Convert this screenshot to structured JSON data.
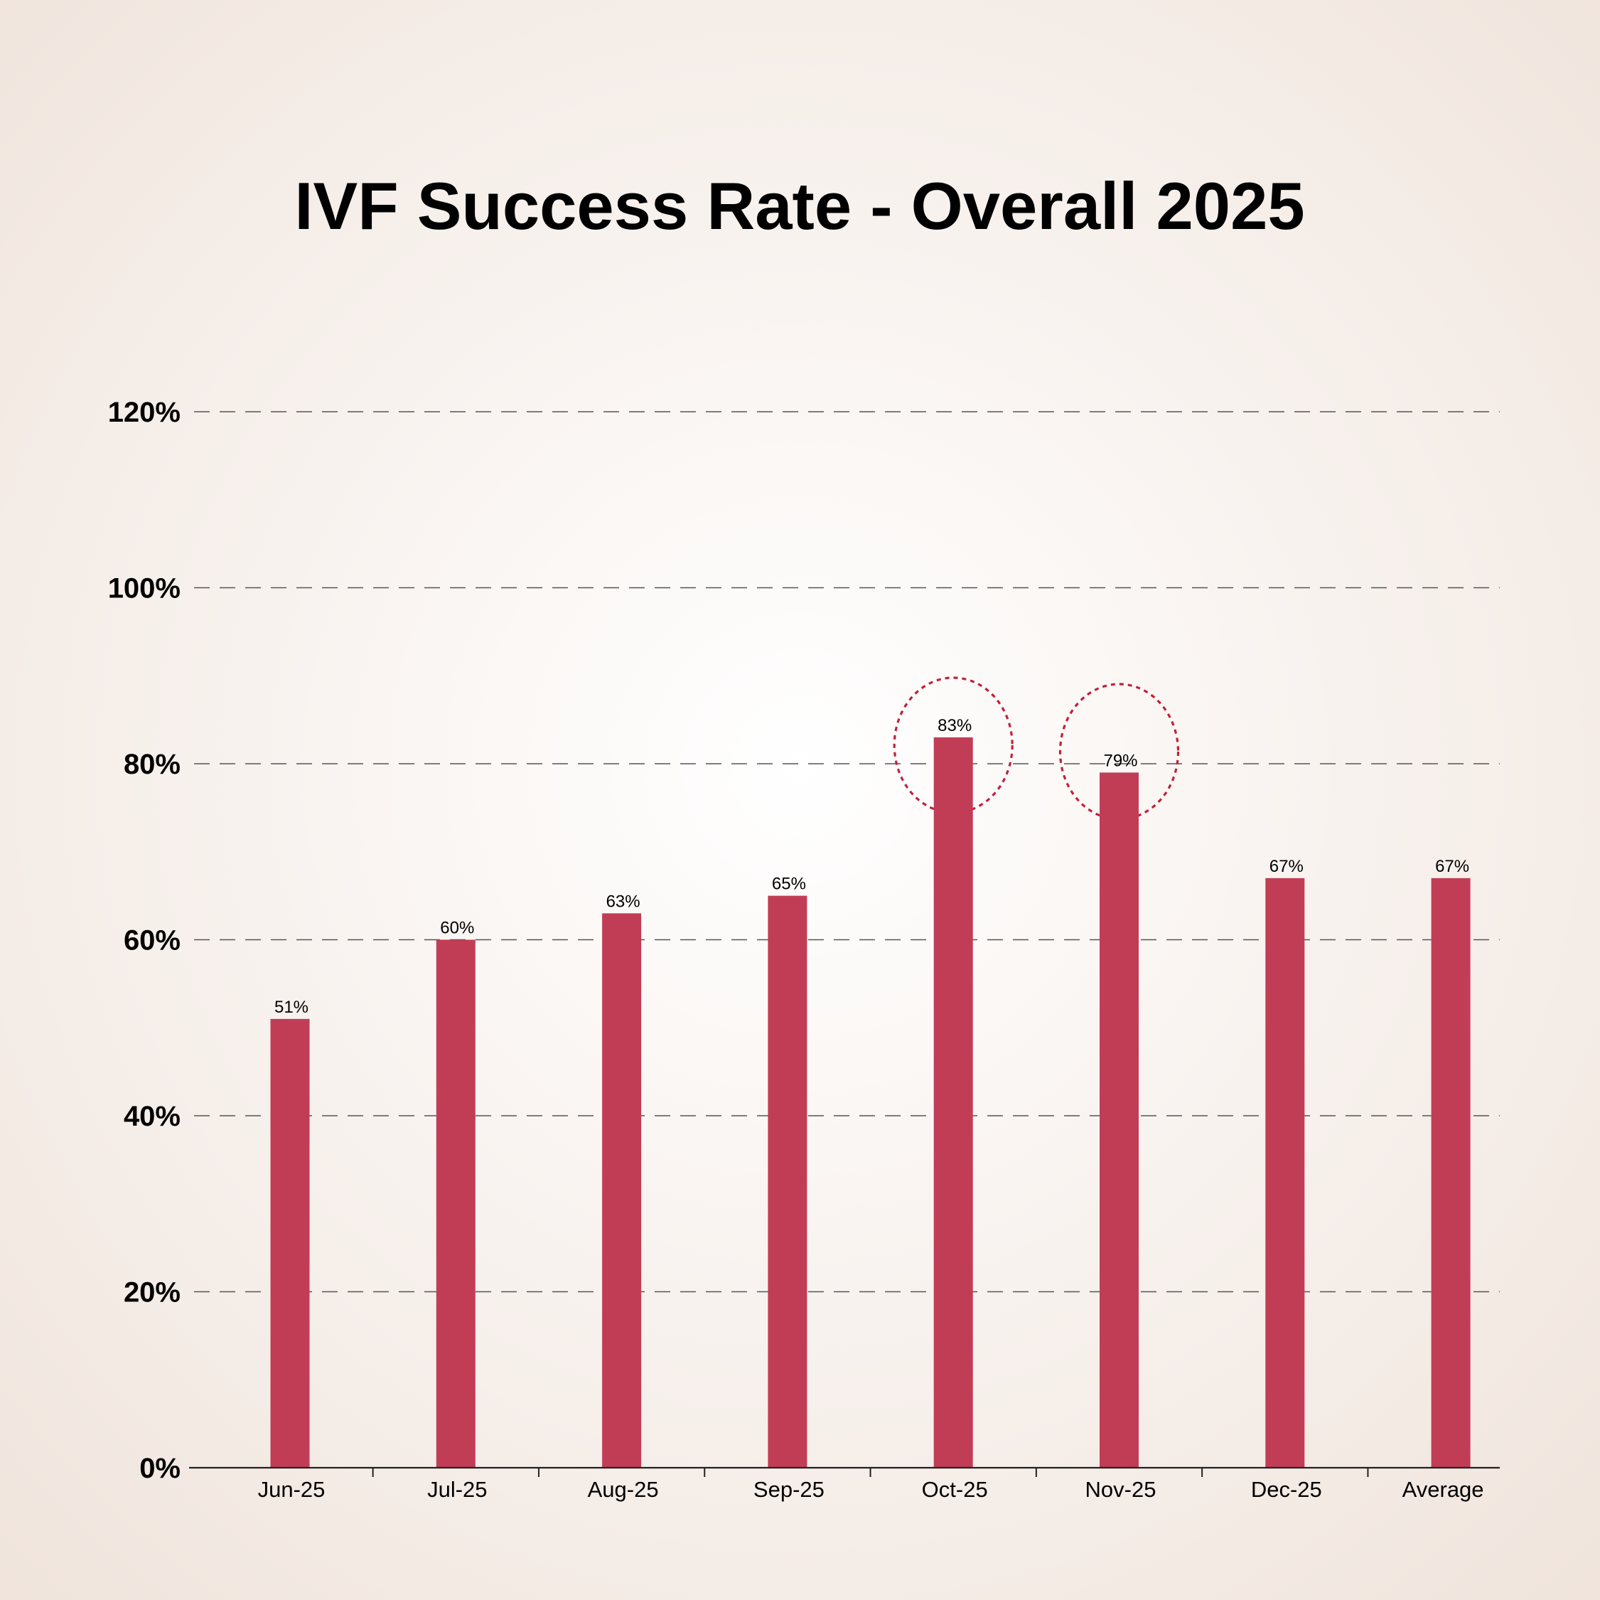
{
  "chart_data": {
    "type": "bar",
    "title": "IVF Success Rate - Overall 2025",
    "categories": [
      "Jun-25",
      "Jul-25",
      "Aug-25",
      "Sep-25",
      "Oct-25",
      "Nov-25",
      "Dec-25",
      "Average"
    ],
    "values": [
      51,
      60,
      63,
      65,
      83,
      79,
      67,
      67
    ],
    "data_labels": [
      "51%",
      "60%",
      "63%",
      "65%",
      "83%",
      "79%",
      "67%",
      "67%"
    ],
    "highlighted_categories": [
      "Oct-25",
      "Nov-25"
    ],
    "xlabel": "",
    "ylabel": "",
    "ylim": [
      0,
      120
    ],
    "yticks": [
      0,
      20,
      40,
      60,
      80,
      100,
      120
    ],
    "ytick_labels": [
      "0%",
      "20%",
      "40%",
      "60%",
      "80%",
      "100%",
      "120%"
    ],
    "grid": "horizontal dashed",
    "legend": "none",
    "colors": {
      "bar": "#c13d56",
      "highlight_circle": "#c0213a",
      "background_center": "#ffffff",
      "background_edge": "#f0e4dc",
      "grid": "#555555"
    }
  }
}
